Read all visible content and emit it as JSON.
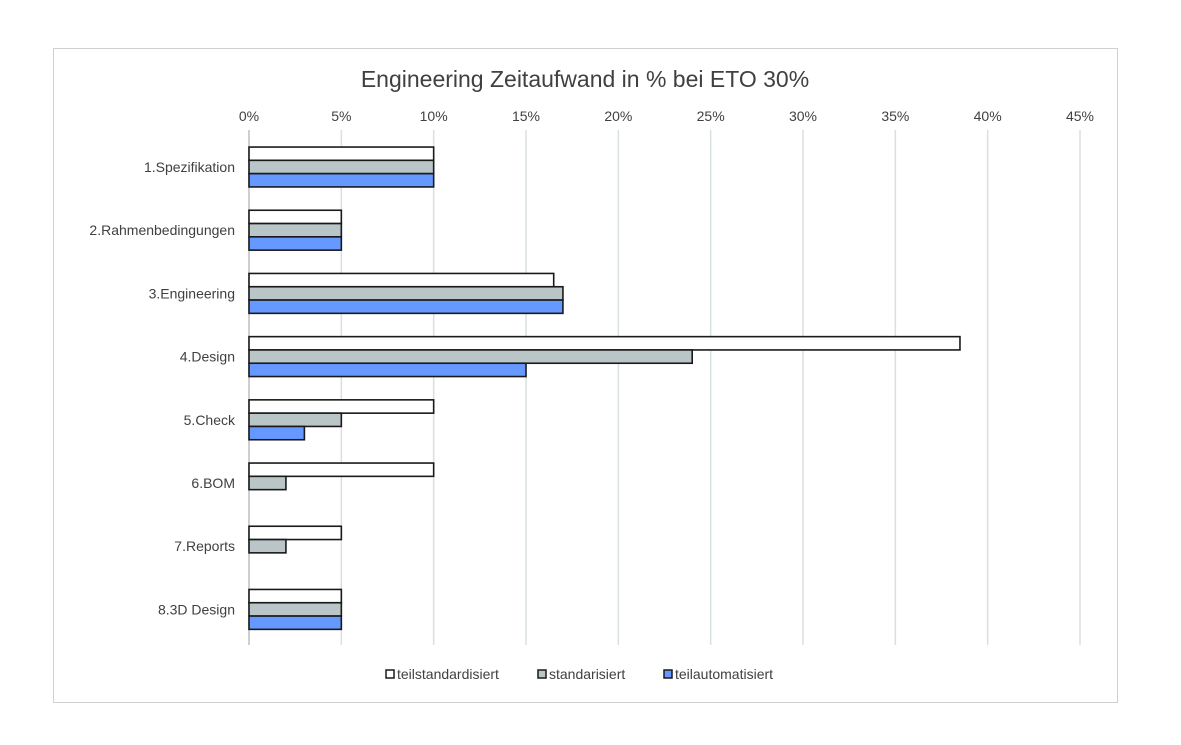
{
  "chart_data": {
    "type": "bar",
    "orientation": "horizontal",
    "title": "Engineering Zeitaufwand in % bei ETO 30%",
    "xlabel": "",
    "ylabel": "",
    "xlim": [
      0,
      45
    ],
    "x_ticks": [
      "0%",
      "5%",
      "10%",
      "15%",
      "20%",
      "25%",
      "30%",
      "35%",
      "40%",
      "45%"
    ],
    "x_axis_position": "top",
    "grid": true,
    "legend_position": "bottom",
    "categories": [
      "1.Spezifikation",
      "2.Rahmenbedingungen",
      "3.Engineering",
      "4.Design",
      "5.Check",
      "6.BOM",
      "7.Reports",
      "8.3D Design"
    ],
    "series": [
      {
        "name": "teilstandardisiert",
        "color": "#ffffff",
        "values": [
          10,
          5,
          16.5,
          38.5,
          10,
          10,
          5,
          5
        ]
      },
      {
        "name": "standarisiert",
        "color": "#b9c5c7",
        "values": [
          10,
          5,
          17,
          24,
          5,
          2,
          2,
          5
        ]
      },
      {
        "name": "teilautomatisiert",
        "color": "#6699ff",
        "values": [
          10,
          5,
          17,
          15,
          3,
          0,
          0,
          5
        ]
      }
    ]
  }
}
